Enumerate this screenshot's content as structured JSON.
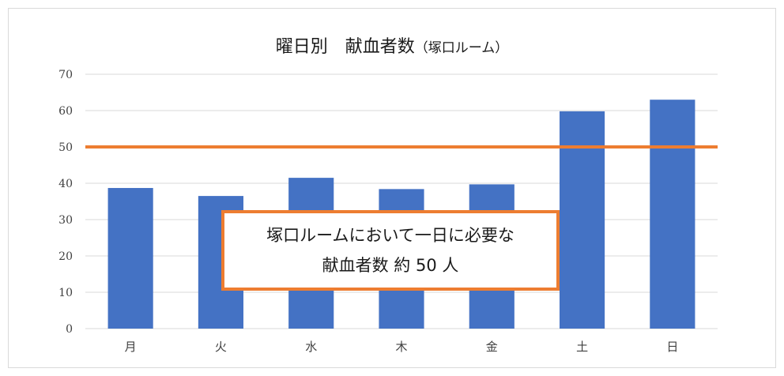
{
  "chart_data": {
    "type": "bar",
    "title": "曜日別　献血者数",
    "title_suffix": "（塚口ルーム）",
    "xlabel": "",
    "ylabel": "",
    "categories": [
      "月",
      "火",
      "水",
      "木",
      "金",
      "土",
      "日"
    ],
    "series": [
      {
        "values": [
          38.7,
          36.5,
          41.5,
          38.4,
          39.7,
          59.8,
          63.0
        ],
        "color": "#4472c4"
      }
    ],
    "reference_line": {
      "value": 50,
      "color": "#ed7d31"
    },
    "ylim": [
      0,
      70
    ],
    "yticks": [
      0,
      10,
      20,
      30,
      40,
      50,
      60,
      70
    ],
    "grid": true,
    "legend": "none",
    "annotation": {
      "line1": "塚口ルームにおいて一日に必要な",
      "line2": "献血者数 約 50 人",
      "border_color": "#ed7d31"
    }
  }
}
